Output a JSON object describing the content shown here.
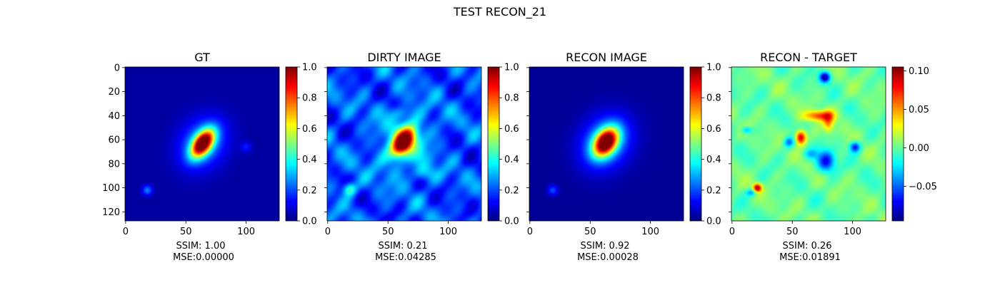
{
  "figure": {
    "suptitle": "TEST RECON_21"
  },
  "colormap": "jet",
  "chart_data": [
    {
      "type": "heatmap",
      "title": "GT",
      "image_shape": [
        128,
        128
      ],
      "x_ticks": [
        0,
        50,
        100
      ],
      "y_ticks": [
        0,
        20,
        40,
        60,
        80,
        100,
        120
      ],
      "show_y_tick_labels": true,
      "clim": [
        0.0,
        1.0
      ],
      "colorbar_ticks": [
        0.0,
        0.2,
        0.4,
        0.6,
        0.8,
        1.0
      ],
      "colorbar_tick_labels": [
        "0.0",
        "0.2",
        "0.4",
        "0.6",
        "0.8",
        "1.0"
      ],
      "background_level": 0.03,
      "features": [
        {
          "x": 64,
          "y": 63,
          "sx": 5,
          "sy": 9,
          "angle_deg": 35,
          "amp": 0.97
        },
        {
          "x": 64,
          "y": 63,
          "sx": 13,
          "sy": 16,
          "angle_deg": 35,
          "amp": 0.25
        },
        {
          "x": 18,
          "y": 102,
          "sx": 3,
          "sy": 3,
          "angle_deg": 0,
          "amp": 0.22
        },
        {
          "x": 100,
          "y": 66,
          "sx": 3,
          "sy": 3,
          "angle_deg": 0,
          "amp": 0.12
        }
      ],
      "stats": {
        "ssim_label": "SSIM: 1.00",
        "mse_label": "MSE:0.00000"
      }
    },
    {
      "type": "heatmap",
      "title": "DIRTY IMAGE",
      "image_shape": [
        128,
        128
      ],
      "x_ticks": [
        0,
        50,
        100
      ],
      "y_ticks": [
        0,
        20,
        40,
        60,
        80,
        100,
        120
      ],
      "show_y_tick_labels": false,
      "clim": [
        0.0,
        1.0
      ],
      "colorbar_ticks": [
        0.0,
        0.2,
        0.4,
        0.6,
        0.8,
        1.0
      ],
      "colorbar_tick_labels": [
        "0.0",
        "0.2",
        "0.4",
        "0.6",
        "0.8",
        "1.0"
      ],
      "background_level": 0.2,
      "noise_amp": 0.08,
      "features": [
        {
          "x": 63,
          "y": 62,
          "sx": 5,
          "sy": 9,
          "angle_deg": 35,
          "amp": 0.85
        },
        {
          "x": 63,
          "y": 62,
          "sx": 14,
          "sy": 18,
          "angle_deg": 35,
          "amp": 0.18
        },
        {
          "x": 18,
          "y": 101,
          "sx": 4,
          "sy": 4,
          "angle_deg": 0,
          "amp": 0.3
        },
        {
          "x": 80,
          "y": 88,
          "sx": 7,
          "sy": 5,
          "angle_deg": 0,
          "amp": 0.15
        },
        {
          "x": 60,
          "y": 38,
          "sx": 6,
          "sy": 4,
          "angle_deg": 0,
          "amp": 0.12
        }
      ],
      "stats": {
        "ssim_label": "SSIM: 0.21",
        "mse_label": "MSE:0.04285"
      }
    },
    {
      "type": "heatmap",
      "title": "RECON IMAGE",
      "image_shape": [
        128,
        128
      ],
      "x_ticks": [
        0,
        50,
        100
      ],
      "y_ticks": [
        0,
        20,
        40,
        60,
        80,
        100,
        120
      ],
      "show_y_tick_labels": false,
      "clim": [
        0.0,
        1.0
      ],
      "colorbar_ticks": [
        0.0,
        0.2,
        0.4,
        0.6,
        0.8,
        1.0
      ],
      "colorbar_tick_labels": [
        "0.0",
        "0.2",
        "0.4",
        "0.6",
        "0.8",
        "1.0"
      ],
      "background_level": 0.02,
      "features": [
        {
          "x": 63,
          "y": 62,
          "sx": 6,
          "sy": 9,
          "angle_deg": 35,
          "amp": 0.95
        },
        {
          "x": 63,
          "y": 62,
          "sx": 14,
          "sy": 17,
          "angle_deg": 35,
          "amp": 0.28
        },
        {
          "x": 19,
          "y": 102,
          "sx": 3,
          "sy": 3,
          "angle_deg": 0,
          "amp": 0.18
        }
      ],
      "stats": {
        "ssim_label": "SSIM: 0.92",
        "mse_label": "MSE:0.00028"
      }
    },
    {
      "type": "heatmap",
      "title": "RECON - TARGET",
      "image_shape": [
        128,
        128
      ],
      "x_ticks": [
        0,
        50,
        100
      ],
      "y_ticks": [
        0,
        20,
        40,
        60,
        80,
        100,
        120
      ],
      "show_y_tick_labels": false,
      "clim": [
        -0.095,
        0.105
      ],
      "colorbar_ticks": [
        -0.05,
        0.0,
        0.05,
        0.1
      ],
      "colorbar_tick_labels": [
        "−0.05",
        "0.00",
        "0.05",
        "0.10"
      ],
      "background_level": 0.0,
      "noise_amp": 0.008,
      "features": [
        {
          "x": 57,
          "y": 58,
          "sx": 3,
          "sy": 4,
          "angle_deg": 0,
          "amp": 0.1
        },
        {
          "x": 72,
          "y": 40,
          "sx": 8,
          "sy": 3,
          "angle_deg": 0,
          "amp": 0.07
        },
        {
          "x": 80,
          "y": 45,
          "sx": 3,
          "sy": 6,
          "angle_deg": 0,
          "amp": 0.05
        },
        {
          "x": 21,
          "y": 100,
          "sx": 2.5,
          "sy": 2.5,
          "angle_deg": 0,
          "amp": 0.1
        },
        {
          "x": 77,
          "y": 8,
          "sx": 3,
          "sy": 3,
          "angle_deg": 0,
          "amp": -0.09
        },
        {
          "x": 78,
          "y": 78,
          "sx": 5,
          "sy": 6,
          "angle_deg": 0,
          "amp": -0.07
        },
        {
          "x": 102,
          "y": 66,
          "sx": 3,
          "sy": 3,
          "angle_deg": 0,
          "amp": -0.07
        },
        {
          "x": 47,
          "y": 62,
          "sx": 3,
          "sy": 3,
          "angle_deg": 0,
          "amp": -0.05
        },
        {
          "x": 12,
          "y": 52,
          "sx": 3,
          "sy": 2,
          "angle_deg": 0,
          "amp": -0.04
        },
        {
          "x": 16,
          "y": 104,
          "sx": 3,
          "sy": 2,
          "angle_deg": 0,
          "amp": -0.04
        },
        {
          "x": 65,
          "y": 72,
          "sx": 4,
          "sy": 3,
          "angle_deg": 0,
          "amp": -0.03
        }
      ],
      "stats": {
        "ssim_label": "SSIM: 0.26",
        "mse_label": "MSE:0.01891"
      }
    }
  ]
}
